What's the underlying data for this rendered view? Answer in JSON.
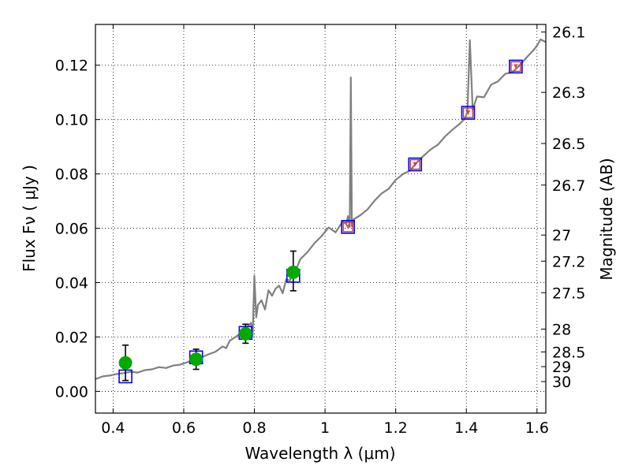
{
  "chart_data": {
    "type": "scatter",
    "xlabel": "Wavelength  λ (μm)",
    "ylabel": "Flux  Fν ( μJy )",
    "ylabel_right": "Magnitude (AB)",
    "xlim": [
      0.35,
      1.625
    ],
    "ylim": [
      -0.008,
      0.135
    ],
    "grid": true,
    "x_ticks": [
      0.4,
      0.6,
      0.8,
      1.0,
      1.2,
      1.4,
      1.6
    ],
    "x_tick_labels": [
      "0.4",
      "0.6",
      "0.8",
      "1",
      "1.2",
      "1.4",
      "1.6"
    ],
    "y_ticks": [
      0.0,
      0.02,
      0.04,
      0.06,
      0.08,
      0.1,
      0.12
    ],
    "y_tick_labels": [
      "0.00",
      "0.02",
      "0.04",
      "0.06",
      "0.08",
      "0.10",
      "0.12"
    ],
    "right_ticks": [
      {
        "label": "26.1",
        "flux": 0.1322
      },
      {
        "label": "26.3",
        "flux": 0.11
      },
      {
        "label": "26.5",
        "flux": 0.0912
      },
      {
        "label": "26.7",
        "flux": 0.0759
      },
      {
        "label": "27",
        "flux": 0.0575
      },
      {
        "label": "27.2",
        "flux": 0.0479
      },
      {
        "label": "27.5",
        "flux": 0.0363
      },
      {
        "label": "28",
        "flux": 0.0229
      },
      {
        "label": "28.5",
        "flux": 0.0145
      },
      {
        "label": "29",
        "flux": 0.0091
      },
      {
        "label": "30",
        "flux": 0.0036
      }
    ],
    "series": [
      {
        "kind": "spectrum",
        "color": "#808080",
        "x": [
          0.35,
          0.37,
          0.39,
          0.41,
          0.43,
          0.45,
          0.47,
          0.49,
          0.51,
          0.53,
          0.55,
          0.57,
          0.59,
          0.61,
          0.63,
          0.65,
          0.67,
          0.69,
          0.71,
          0.72,
          0.73,
          0.75,
          0.76,
          0.77,
          0.78,
          0.79,
          0.795,
          0.8,
          0.805,
          0.81,
          0.82,
          0.83,
          0.84,
          0.85,
          0.86,
          0.87,
          0.88,
          0.89,
          0.9,
          0.91,
          0.92,
          0.93,
          0.95,
          0.97,
          0.99,
          1.01,
          1.03,
          1.05,
          1.06,
          1.065,
          1.07,
          1.073,
          1.076,
          1.08,
          1.1,
          1.12,
          1.14,
          1.16,
          1.18,
          1.2,
          1.22,
          1.24,
          1.26,
          1.28,
          1.3,
          1.32,
          1.34,
          1.36,
          1.38,
          1.395,
          1.403,
          1.41,
          1.418,
          1.43,
          1.45,
          1.47,
          1.49,
          1.51,
          1.53,
          1.55,
          1.57,
          1.59,
          1.6,
          1.61,
          1.625
        ],
        "y": [
          0.0045,
          0.0055,
          0.0058,
          0.0064,
          0.0067,
          0.0072,
          0.0069,
          0.0078,
          0.0081,
          0.0089,
          0.0086,
          0.0095,
          0.0098,
          0.0107,
          0.0118,
          0.0125,
          0.0136,
          0.0146,
          0.0165,
          0.0159,
          0.0186,
          0.0203,
          0.0214,
          0.0202,
          0.0238,
          0.0252,
          0.0205,
          0.0425,
          0.0272,
          0.0318,
          0.0335,
          0.0301,
          0.0372,
          0.0352,
          0.0378,
          0.0389,
          0.0361,
          0.0412,
          0.0408,
          0.0431,
          0.0455,
          0.0486,
          0.0512,
          0.0545,
          0.0571,
          0.0603,
          0.0585,
          0.0625,
          0.0615,
          0.0645,
          0.0605,
          0.1155,
          0.0608,
          0.0632,
          0.0648,
          0.0669,
          0.0701,
          0.0728,
          0.0745,
          0.0778,
          0.0799,
          0.0812,
          0.0842,
          0.0868,
          0.0891,
          0.0908,
          0.0938,
          0.0962,
          0.0983,
          0.1002,
          0.1028,
          0.1292,
          0.1035,
          0.1085,
          0.1082,
          0.1128,
          0.1141,
          0.1168,
          0.1174,
          0.1198,
          0.1228,
          0.1255,
          0.1272,
          0.1295,
          0.1285
        ]
      },
      {
        "kind": "model_points",
        "marker": "square",
        "color": "#0000ff",
        "x": [
          0.435,
          0.635,
          0.775,
          0.91,
          1.065,
          1.255,
          1.405,
          1.54
        ],
        "y": [
          0.0055,
          0.0125,
          0.0215,
          0.0425,
          0.0605,
          0.0835,
          0.1025,
          0.1195
        ]
      },
      {
        "kind": "upper_limits",
        "marker": "triangle-down",
        "color": "#cc3333",
        "x": [
          1.065,
          1.255,
          1.405,
          1.54
        ],
        "y": [
          0.0605,
          0.0835,
          0.1025,
          0.1195
        ]
      },
      {
        "kind": "observed",
        "marker": "circle",
        "color": "#00aa00",
        "x": [
          0.435,
          0.635,
          0.775,
          0.91
        ],
        "y": [
          0.0105,
          0.0118,
          0.0212,
          0.0438
        ],
        "err_low": [
          0.0065,
          0.0037,
          0.0035,
          0.0068
        ],
        "err_high": [
          0.0065,
          0.0037,
          0.0035,
          0.0078
        ]
      }
    ]
  }
}
